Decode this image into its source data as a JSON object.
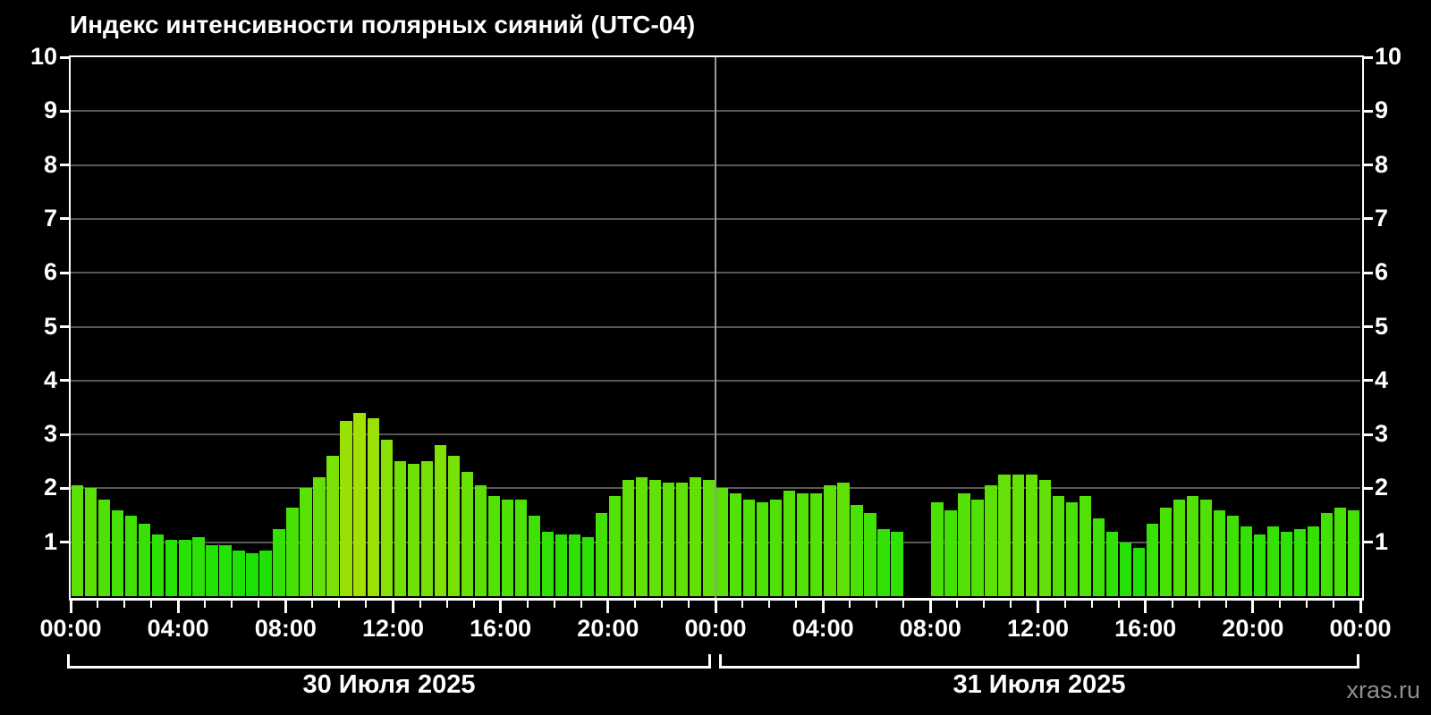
{
  "title": "Индекс интенсивности полярных сияний (UTC-04)",
  "watermark": "xras.ru",
  "colors": {
    "background": "#000000",
    "text": "#ffffff",
    "gridline": "#575757",
    "axis": "#ffffff",
    "day_separator": "#999999",
    "watermark_text": "#8f8f8f",
    "bar_color_low": "#26e105",
    "bar_color_high": "#a1e105"
  },
  "chart_data": {
    "type": "bar",
    "title": "Индекс интенсивности полярных сияний (UTC-04)",
    "xlabel": "",
    "ylabel": "",
    "ylim": [
      0,
      10
    ],
    "y_ticks": [
      1,
      2,
      3,
      4,
      5,
      6,
      7,
      8,
      9,
      10
    ],
    "grid": true,
    "legend": false,
    "bar_interval_minutes": 30,
    "total_hours": 48,
    "x_tick_labels": [
      "00:00",
      "04:00",
      "08:00",
      "12:00",
      "16:00",
      "20:00",
      "00:00",
      "04:00",
      "08:00",
      "12:00",
      "16:00",
      "20:00",
      "00:00"
    ],
    "times": [
      "00:00",
      "00:30",
      "01:00",
      "01:30",
      "02:00",
      "02:30",
      "03:00",
      "03:30",
      "04:00",
      "04:30",
      "05:00",
      "05:30",
      "06:00",
      "06:30",
      "07:00",
      "07:30",
      "08:00",
      "08:30",
      "09:00",
      "09:30",
      "10:00",
      "10:30",
      "11:00",
      "11:30",
      "12:00",
      "12:30",
      "13:00",
      "13:30",
      "14:00",
      "14:30",
      "15:00",
      "15:30",
      "16:00",
      "16:30",
      "17:00",
      "17:30",
      "18:00",
      "18:30",
      "19:00",
      "19:30",
      "20:00",
      "20:30",
      "21:00",
      "21:30",
      "22:00",
      "22:30",
      "23:00",
      "23:30"
    ],
    "days": [
      {
        "label": "30 Июля 2025",
        "values": [
          2.05,
          2.0,
          1.8,
          1.6,
          1.5,
          1.35,
          1.15,
          1.05,
          1.05,
          1.1,
          0.95,
          0.95,
          0.85,
          0.8,
          0.85,
          1.25,
          1.65,
          2.0,
          2.2,
          2.6,
          3.25,
          3.4,
          3.3,
          2.9,
          2.5,
          2.45,
          2.5,
          2.8,
          2.6,
          2.3,
          2.05,
          1.85,
          1.8,
          1.8,
          1.5,
          1.2,
          1.15,
          1.15,
          1.1,
          1.55,
          1.85,
          2.15,
          2.2,
          2.15,
          2.1,
          2.1,
          2.2,
          2.15
        ]
      },
      {
        "label": "31 Июля 2025",
        "values": [
          2.0,
          1.9,
          1.8,
          1.75,
          1.8,
          1.95,
          1.9,
          1.9,
          2.05,
          2.1,
          1.7,
          1.55,
          1.25,
          1.2,
          null,
          null,
          1.75,
          1.6,
          1.9,
          1.8,
          2.05,
          2.25,
          2.25,
          2.25,
          2.15,
          1.85,
          1.75,
          1.85,
          1.45,
          1.2,
          1.0,
          0.9,
          1.35,
          1.65,
          1.8,
          1.85,
          1.8,
          1.6,
          1.5,
          1.3,
          1.15,
          1.3,
          1.2,
          1.25,
          1.3,
          1.55,
          1.65,
          1.6
        ]
      }
    ],
    "missing_data": {
      "day": "31 Июля 2025",
      "times": [
        "07:00",
        "07:30"
      ]
    }
  }
}
